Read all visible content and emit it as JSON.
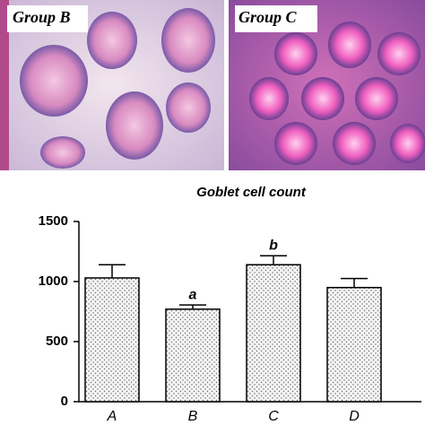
{
  "panels": [
    {
      "label": "Group B"
    },
    {
      "label": "Group C"
    }
  ],
  "chart_data": {
    "type": "bar",
    "title": "Goblet cell count",
    "categories": [
      "A",
      "B",
      "C",
      "D"
    ],
    "values": [
      1030,
      770,
      1140,
      950
    ],
    "errors": [
      110,
      35,
      75,
      75
    ],
    "bar_annotations": [
      null,
      "a",
      "b",
      null
    ],
    "color": "#e8e8e8",
    "ylim": [
      0,
      1500
    ],
    "yticks": [
      0,
      500,
      1000,
      1500
    ],
    "grid": false
  }
}
